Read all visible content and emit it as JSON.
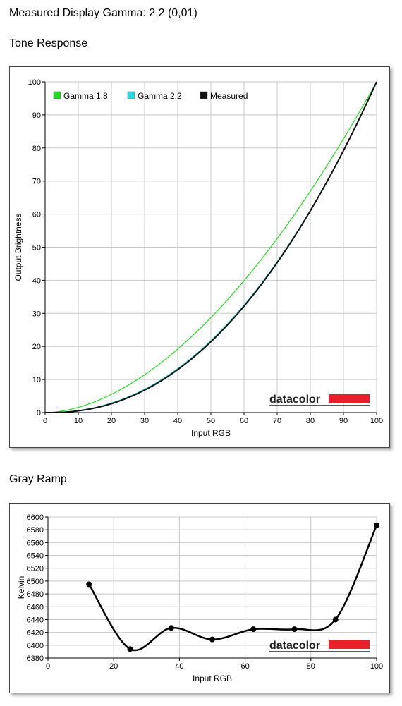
{
  "page": {
    "measured_label": "Measured Display Gamma: 2,2 (0,01)"
  },
  "sections": {
    "tone_response_title": "Tone Response",
    "gray_ramp_title": "Gray Ramp"
  },
  "logo_text": "datacolor",
  "colors": {
    "gamma18": "#22dd22",
    "gamma22": "#22dddd",
    "measured": "#111111",
    "logo_red": "#e8202a",
    "grid": "#c8c8c8"
  },
  "chart_data": [
    {
      "type": "line",
      "xlabel": "Input RGB",
      "ylabel": "Output Brightness",
      "xlim": [
        0,
        100
      ],
      "ylim": [
        0,
        100
      ],
      "xticks": [
        0,
        10,
        20,
        30,
        40,
        50,
        60,
        70,
        80,
        90,
        100
      ],
      "yticks": [
        0,
        10,
        20,
        30,
        40,
        50,
        60,
        70,
        80,
        90,
        100
      ],
      "grid": true,
      "legend_position": "top-left",
      "series": [
        {
          "name": "Gamma 1.8",
          "color": "#22dd22",
          "gamma": 1.8
        },
        {
          "name": "Gamma 2.2",
          "color": "#22dddd",
          "gamma": 2.2
        },
        {
          "name": "Measured",
          "color": "#111111",
          "gamma": 2.2
        }
      ]
    },
    {
      "type": "line",
      "xlabel": "Input RGB",
      "ylabel": "Kelvin",
      "xlim": [
        0,
        100
      ],
      "ylim": [
        6380,
        6600
      ],
      "xticks": [
        0,
        20,
        40,
        60,
        80,
        100
      ],
      "yticks": [
        6380,
        6400,
        6420,
        6440,
        6460,
        6480,
        6500,
        6520,
        6540,
        6560,
        6580,
        6600
      ],
      "grid": true,
      "series": [
        {
          "x": [
            12.5,
            25,
            37.5,
            50,
            62.5,
            75,
            87.5,
            100
          ],
          "y": [
            6495,
            6394,
            6427,
            6409,
            6425,
            6425,
            6440,
            6587
          ]
        }
      ]
    }
  ]
}
